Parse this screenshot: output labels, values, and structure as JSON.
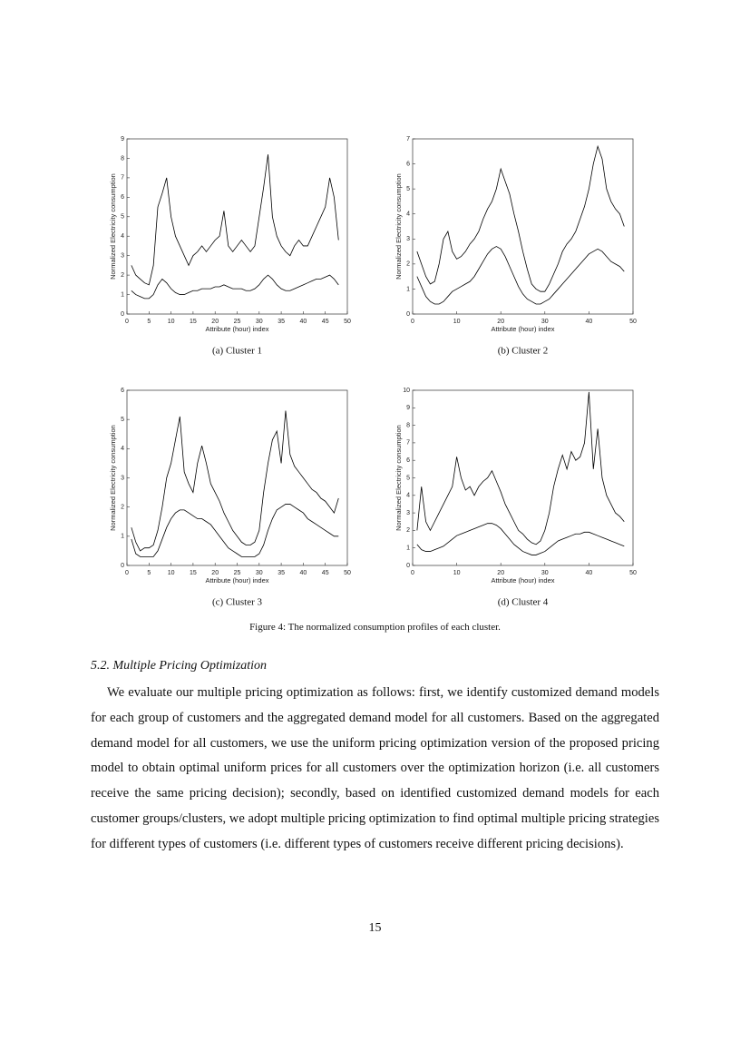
{
  "chart_data": [
    {
      "type": "line",
      "caption": "(a) Cluster 1",
      "xlabel": "Attribute (hour) index",
      "ylabel": "Normalized Electricity consumption",
      "xlim": [
        0,
        50
      ],
      "xticks": [
        0,
        5,
        10,
        15,
        20,
        25,
        30,
        35,
        40,
        45,
        50
      ],
      "ylim": [
        0,
        9
      ],
      "yticks": [
        0,
        1,
        2,
        3,
        4,
        5,
        6,
        7,
        8,
        9
      ],
      "x": [
        1,
        2,
        3,
        4,
        5,
        6,
        7,
        8,
        9,
        10,
        11,
        12,
        13,
        14,
        15,
        16,
        17,
        18,
        19,
        20,
        21,
        22,
        23,
        24,
        25,
        26,
        27,
        28,
        29,
        30,
        31,
        32,
        33,
        34,
        35,
        36,
        37,
        38,
        39,
        40,
        41,
        42,
        43,
        44,
        45,
        46,
        47,
        48
      ],
      "series": [
        {
          "color": "#000000",
          "values": [
            2.5,
            2,
            1.8,
            1.6,
            1.5,
            2.5,
            5.5,
            6.2,
            7,
            5,
            4,
            3.5,
            3,
            2.5,
            3,
            3.2,
            3.5,
            3.2,
            3.5,
            3.8,
            4,
            5.3,
            3.5,
            3.2,
            3.5,
            3.8,
            3.5,
            3.2,
            3.5,
            5,
            6.5,
            8.2,
            5,
            4,
            3.5,
            3.2,
            3,
            3.5,
            3.8,
            3.5,
            3.5,
            4,
            4.5,
            5,
            5.5,
            7,
            6,
            3.8
          ]
        },
        {
          "color": "#000000",
          "values": [
            1.2,
            1,
            0.9,
            0.8,
            0.8,
            1,
            1.5,
            1.8,
            1.6,
            1.3,
            1.1,
            1,
            1,
            1.1,
            1.2,
            1.2,
            1.3,
            1.3,
            1.3,
            1.4,
            1.4,
            1.5,
            1.4,
            1.3,
            1.3,
            1.3,
            1.2,
            1.2,
            1.3,
            1.5,
            1.8,
            2,
            1.8,
            1.5,
            1.3,
            1.2,
            1.2,
            1.3,
            1.4,
            1.5,
            1.6,
            1.7,
            1.8,
            1.8,
            1.9,
            2,
            1.8,
            1.5
          ]
        }
      ]
    },
    {
      "type": "line",
      "caption": "(b) Cluster 2",
      "xlabel": "Attribute (hour) index",
      "ylabel": "Normalized Electricity consumption",
      "xlim": [
        0,
        50
      ],
      "xticks": [
        0,
        10,
        20,
        30,
        40,
        50
      ],
      "ylim": [
        0,
        7
      ],
      "yticks": [
        0,
        1,
        2,
        3,
        4,
        5,
        6,
        7
      ],
      "x": [
        1,
        2,
        3,
        4,
        5,
        6,
        7,
        8,
        9,
        10,
        11,
        12,
        13,
        14,
        15,
        16,
        17,
        18,
        19,
        20,
        21,
        22,
        23,
        24,
        25,
        26,
        27,
        28,
        29,
        30,
        31,
        32,
        33,
        34,
        35,
        36,
        37,
        38,
        39,
        40,
        41,
        42,
        43,
        44,
        45,
        46,
        47,
        48
      ],
      "series": [
        {
          "color": "#000000",
          "values": [
            2.5,
            2,
            1.5,
            1.2,
            1.3,
            2,
            3,
            3.3,
            2.5,
            2.2,
            2.3,
            2.5,
            2.8,
            3,
            3.3,
            3.8,
            4.2,
            4.5,
            5,
            5.8,
            5.3,
            4.8,
            4,
            3.3,
            2.5,
            1.8,
            1.2,
            1,
            0.9,
            0.9,
            1.2,
            1.6,
            2,
            2.5,
            2.8,
            3,
            3.3,
            3.8,
            4.3,
            5,
            6,
            6.7,
            6.2,
            5,
            4.5,
            4.2,
            4,
            3.5
          ]
        },
        {
          "color": "#000000",
          "values": [
            1.5,
            1.1,
            0.7,
            0.5,
            0.4,
            0.4,
            0.5,
            0.7,
            0.9,
            1,
            1.1,
            1.2,
            1.3,
            1.5,
            1.8,
            2.1,
            2.4,
            2.6,
            2.7,
            2.6,
            2.3,
            1.9,
            1.5,
            1.1,
            0.8,
            0.6,
            0.5,
            0.4,
            0.4,
            0.5,
            0.6,
            0.8,
            1,
            1.2,
            1.4,
            1.6,
            1.8,
            2,
            2.2,
            2.4,
            2.5,
            2.6,
            2.5,
            2.3,
            2.1,
            2,
            1.9,
            1.7
          ]
        }
      ]
    },
    {
      "type": "line",
      "caption": "(c) Cluster 3",
      "xlabel": "Attribute (hour) index",
      "ylabel": "Normalized Electricity consumption",
      "xlim": [
        0,
        50
      ],
      "xticks": [
        0,
        5,
        10,
        15,
        20,
        25,
        30,
        35,
        40,
        45,
        50
      ],
      "ylim": [
        0,
        6
      ],
      "yticks": [
        0,
        1,
        2,
        3,
        4,
        5,
        6
      ],
      "x": [
        1,
        2,
        3,
        4,
        5,
        6,
        7,
        8,
        9,
        10,
        11,
        12,
        13,
        14,
        15,
        16,
        17,
        18,
        19,
        20,
        21,
        22,
        23,
        24,
        25,
        26,
        27,
        28,
        29,
        30,
        31,
        32,
        33,
        34,
        35,
        36,
        37,
        38,
        39,
        40,
        41,
        42,
        43,
        44,
        45,
        46,
        47,
        48
      ],
      "series": [
        {
          "color": "#000000",
          "values": [
            1.3,
            0.8,
            0.5,
            0.6,
            0.6,
            0.7,
            1.2,
            2,
            3,
            3.5,
            4.3,
            5.1,
            3.2,
            2.8,
            2.5,
            3.5,
            4.1,
            3.5,
            2.8,
            2.5,
            2.2,
            1.8,
            1.5,
            1.2,
            1,
            0.8,
            0.7,
            0.7,
            0.8,
            1.2,
            2.5,
            3.5,
            4.3,
            4.6,
            3.5,
            5.3,
            3.8,
            3.4,
            3.2,
            3,
            2.8,
            2.6,
            2.5,
            2.3,
            2.2,
            2,
            1.8,
            2.3
          ]
        },
        {
          "color": "#000000",
          "values": [
            0.9,
            0.4,
            0.3,
            0.3,
            0.3,
            0.3,
            0.5,
            0.9,
            1.3,
            1.6,
            1.8,
            1.9,
            1.9,
            1.8,
            1.7,
            1.6,
            1.6,
            1.5,
            1.4,
            1.2,
            1,
            0.8,
            0.6,
            0.5,
            0.4,
            0.3,
            0.3,
            0.3,
            0.3,
            0.4,
            0.7,
            1.2,
            1.6,
            1.9,
            2,
            2.1,
            2.1,
            2,
            1.9,
            1.8,
            1.6,
            1.5,
            1.4,
            1.3,
            1.2,
            1.1,
            1,
            1
          ]
        }
      ]
    },
    {
      "type": "line",
      "caption": "(d) Cluster 4",
      "xlabel": "Attribute (hour) index",
      "ylabel": "Normalized Electricity consumption",
      "xlim": [
        0,
        50
      ],
      "xticks": [
        0,
        10,
        20,
        30,
        40,
        50
      ],
      "ylim": [
        0,
        10
      ],
      "yticks": [
        0,
        1,
        2,
        3,
        4,
        5,
        6,
        7,
        8,
        9,
        10
      ],
      "x": [
        1,
        2,
        3,
        4,
        5,
        6,
        7,
        8,
        9,
        10,
        11,
        12,
        13,
        14,
        15,
        16,
        17,
        18,
        19,
        20,
        21,
        22,
        23,
        24,
        25,
        26,
        27,
        28,
        29,
        30,
        31,
        32,
        33,
        34,
        35,
        36,
        37,
        38,
        39,
        40,
        41,
        42,
        43,
        44,
        45,
        46,
        47,
        48
      ],
      "series": [
        {
          "color": "#000000",
          "values": [
            2,
            4.5,
            2.5,
            2,
            2.5,
            3,
            3.5,
            4,
            4.5,
            6.2,
            5,
            4.3,
            4.5,
            4,
            4.5,
            4.8,
            5,
            5.4,
            4.8,
            4.2,
            3.5,
            3,
            2.5,
            2,
            1.8,
            1.5,
            1.3,
            1.2,
            1.4,
            2,
            3,
            4.5,
            5.5,
            6.3,
            5.5,
            6.5,
            6,
            6.2,
            7,
            9.9,
            5.5,
            7.8,
            5,
            4,
            3.5,
            3,
            2.8,
            2.5
          ]
        },
        {
          "color": "#000000",
          "values": [
            1.2,
            0.9,
            0.8,
            0.8,
            0.9,
            1,
            1.1,
            1.3,
            1.5,
            1.7,
            1.8,
            1.9,
            2,
            2.1,
            2.2,
            2.3,
            2.4,
            2.4,
            2.3,
            2.1,
            1.8,
            1.5,
            1.2,
            1,
            0.8,
            0.7,
            0.6,
            0.6,
            0.7,
            0.8,
            1,
            1.2,
            1.4,
            1.5,
            1.6,
            1.7,
            1.8,
            1.8,
            1.9,
            1.9,
            1.8,
            1.7,
            1.6,
            1.5,
            1.4,
            1.3,
            1.2,
            1.1
          ]
        }
      ]
    }
  ],
  "figure_caption": "Figure 4: The normalized consumption profiles of each cluster.",
  "section_heading": "5.2. Multiple Pricing Optimization",
  "paragraph": "We evaluate our multiple pricing optimization as follows: first, we identify customized demand models for each group of customers and the aggregated demand model for all customers. Based on the aggregated demand model for all customers, we use the uniform pricing optimization version of the proposed pricing model to obtain optimal uniform prices for all customers over the optimization horizon (i.e. all customers receive the same pricing decision); secondly, based on identified customized demand models for each customer groups/clusters, we adopt multiple pricing optimization to find optimal multiple pricing strategies for different types of customers (i.e. different types of customers receive different pricing decisions).",
  "page_number": "15"
}
